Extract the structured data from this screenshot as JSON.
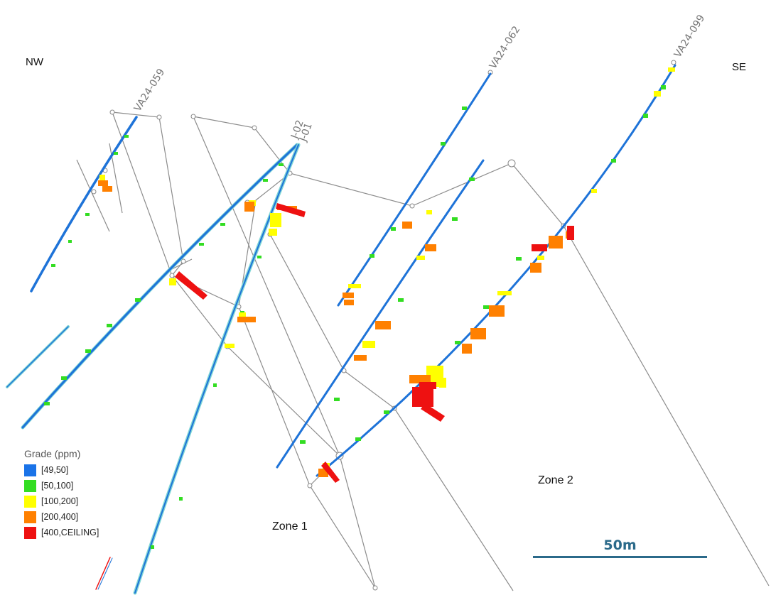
{
  "section": {
    "left_direction": "NW",
    "right_direction": "SE"
  },
  "drill_holes": {
    "labels": [
      "VA24-059",
      "VA24-062",
      "VA24-099",
      "J-02",
      "J-01"
    ],
    "trace_color": "#1e73d8"
  },
  "zones": [
    "Zone 1",
    "Zone 2"
  ],
  "legend": {
    "title": "Grade (ppm)",
    "items": [
      {
        "label": "[49,50]",
        "color": "#1a73e8"
      },
      {
        "label": "[50,100]",
        "color": "#33dd22"
      },
      {
        "label": "[100,200]",
        "color": "#ffff00"
      },
      {
        "label": "[200,400]",
        "color": "#ff8000"
      },
      {
        "label": "[400,CEILING]",
        "color": "#ee1111"
      }
    ]
  },
  "scale_bar": {
    "label": "50m"
  },
  "colors": {
    "outline": "#8c8c8c",
    "scale": "#2b6a8a",
    "trace_alt": "#7fd6d6"
  }
}
